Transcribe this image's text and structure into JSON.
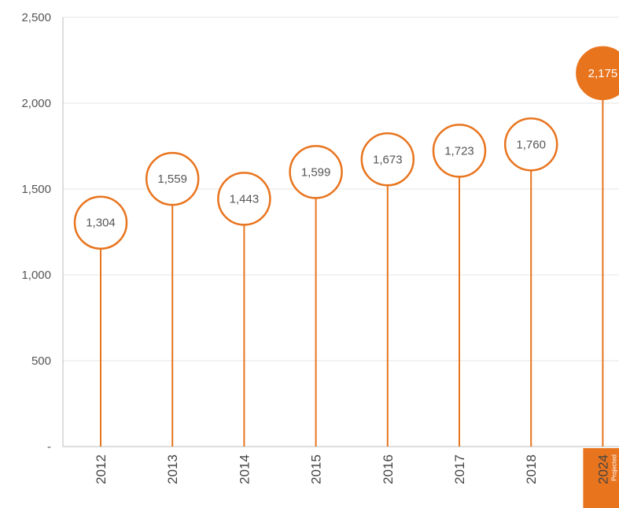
{
  "colors": {
    "accent": "#E8741E",
    "grid": "#E4E4E4",
    "axis": "#BBBBBB",
    "text": "#555555"
  },
  "chart_data": {
    "type": "lollipop",
    "title": "",
    "xlabel": "",
    "ylabel": "",
    "ylim": [
      0,
      2500
    ],
    "y_ticks": [
      {
        "value": 0,
        "label": "-"
      },
      {
        "value": 500,
        "label": "500"
      },
      {
        "value": 1000,
        "label": "1,000"
      },
      {
        "value": 1500,
        "label": "1,500"
      },
      {
        "value": 2000,
        "label": "2,000"
      },
      {
        "value": 2500,
        "label": "2,500"
      }
    ],
    "grid": true,
    "categories": [
      "2012",
      "2013",
      "2014",
      "2015",
      "2016",
      "2017",
      "2018",
      "2024"
    ],
    "values": [
      1304,
      1559,
      1443,
      1599,
      1673,
      1723,
      1760,
      2175
    ],
    "value_labels": [
      "1,304",
      "1,559",
      "1,443",
      "1,599",
      "1,673",
      "1,723",
      "1,760",
      "2,175"
    ],
    "highlight_index": 7,
    "highlight_note": "Projected"
  }
}
